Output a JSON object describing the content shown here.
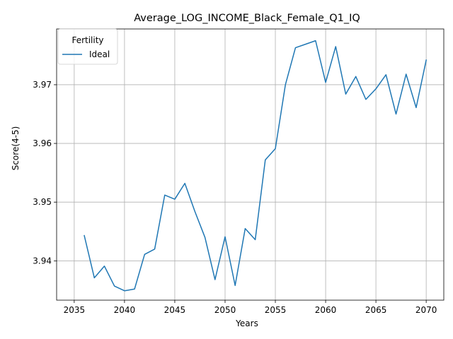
{
  "chart_data": {
    "type": "line",
    "title": "Average_LOG_INCOME_Black_Female_Q1_IQ",
    "xlabel": "Years",
    "ylabel": "Score(4-5)",
    "xlim": [
      2033.25,
      2071.75
    ],
    "ylim": [
      3.9333,
      3.9795
    ],
    "xticks": [
      2035,
      2040,
      2045,
      2050,
      2055,
      2060,
      2065,
      2070
    ],
    "yticks": [
      3.94,
      3.95,
      3.96,
      3.97
    ],
    "ytick_labels": [
      "3.94",
      "3.95",
      "3.96",
      "3.97"
    ],
    "grid": true,
    "legend": {
      "title": "Fertility",
      "placement": "top-left"
    },
    "series": [
      {
        "name": "Ideal",
        "color": "#1f77b4",
        "x": [
          2036,
          2037,
          2038,
          2039,
          2040,
          2041,
          2042,
          2043,
          2044,
          2045,
          2046,
          2047,
          2048,
          2049,
          2050,
          2051,
          2052,
          2053,
          2054,
          2055,
          2056,
          2057,
          2058,
          2059,
          2060,
          2061,
          2062,
          2063,
          2064,
          2065,
          2066,
          2067,
          2068,
          2069,
          2070
        ],
        "y": [
          3.9443,
          3.9371,
          3.9391,
          3.9357,
          3.9349,
          3.9352,
          3.9411,
          3.942,
          3.9512,
          3.9505,
          3.9532,
          3.9484,
          3.944,
          3.9368,
          3.9441,
          3.9358,
          3.9455,
          3.9436,
          3.9572,
          3.9591,
          3.97,
          3.9763,
          3.9769,
          3.9775,
          3.9704,
          3.9765,
          3.9684,
          3.9714,
          3.9675,
          3.9693,
          3.9717,
          3.965,
          3.9718,
          3.9661,
          3.9742
        ]
      }
    ]
  }
}
